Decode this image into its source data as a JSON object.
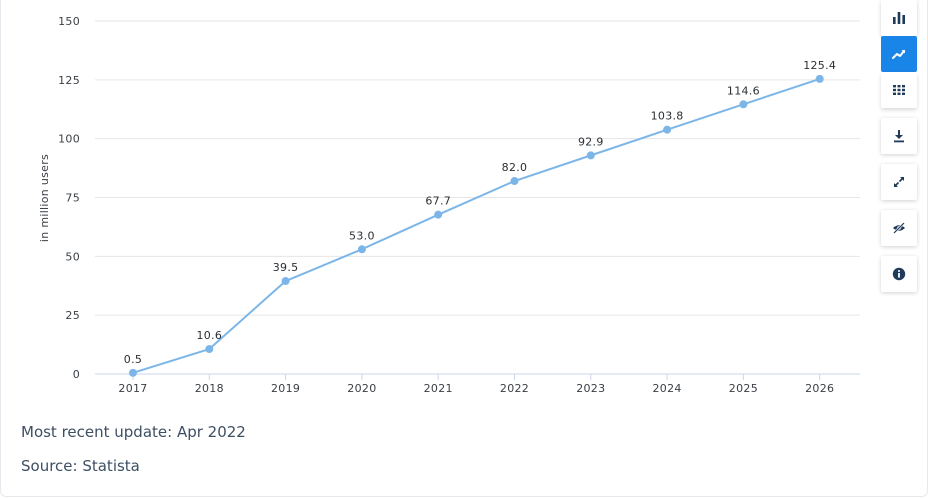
{
  "chart_data": {
    "type": "line",
    "title": "",
    "xlabel": "",
    "ylabel": "in million users",
    "categories": [
      "2017",
      "2018",
      "2019",
      "2020",
      "2021",
      "2022",
      "2023",
      "2024",
      "2025",
      "2026"
    ],
    "values": [
      0.5,
      10.6,
      39.5,
      53.0,
      67.7,
      82.0,
      92.9,
      103.8,
      114.6,
      125.4
    ],
    "data_labels": [
      "0.5",
      "10.6",
      "39.5",
      "53.0",
      "67.7",
      "82.0",
      "92.9",
      "103.8",
      "114.6",
      "125.4"
    ],
    "ylim": [
      0,
      150
    ],
    "yticks": [
      0,
      25,
      50,
      75,
      100,
      125,
      150
    ],
    "ytick_labels": [
      "0",
      "25",
      "50",
      "75",
      "100",
      "125",
      "150"
    ],
    "grid": true,
    "legend": "none",
    "line_color": "#7cb6e8"
  },
  "footer": {
    "update": "Most recent update: Apr 2022",
    "source": "Source: Statista"
  },
  "toolbar": {
    "buttons": [
      {
        "name": "bar-chart-icon",
        "active": false
      },
      {
        "name": "line-chart-icon",
        "active": true
      },
      {
        "name": "table-icon",
        "active": false
      },
      {
        "name": "download-icon",
        "active": false
      },
      {
        "name": "fullscreen-icon",
        "active": false
      },
      {
        "name": "hide-icon",
        "active": false
      },
      {
        "name": "info-icon",
        "active": false
      }
    ],
    "accent_color": "#1a85e8"
  }
}
